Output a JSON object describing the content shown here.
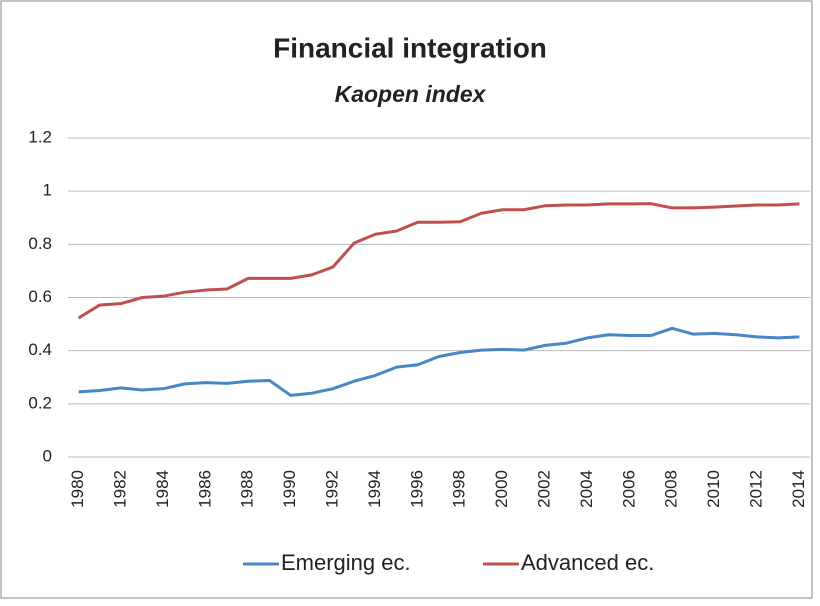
{
  "chart_data": {
    "type": "line",
    "title": "Financial integration",
    "subtitle": "Kaopen index",
    "categories": [
      1980,
      null,
      1982,
      null,
      1984,
      null,
      1986,
      null,
      1988,
      null,
      1990,
      null,
      1992,
      null,
      1994,
      null,
      1996,
      null,
      1998,
      null,
      2000,
      null,
      2002,
      null,
      2004,
      null,
      2006,
      null,
      2008,
      null,
      2010,
      null,
      2012,
      null,
      2014
    ],
    "series": [
      {
        "name": "Emerging ec.",
        "color": "#4a86c5",
        "values": [
          0.245,
          0.25,
          0.26,
          0.252,
          0.257,
          0.275,
          0.28,
          0.277,
          0.285,
          0.288,
          0.232,
          0.24,
          0.257,
          0.285,
          0.307,
          0.338,
          0.347,
          0.378,
          0.393,
          0.402,
          0.405,
          0.402,
          0.42,
          0.428,
          0.448,
          0.46,
          0.457,
          0.457,
          0.484,
          0.462,
          0.465,
          0.46,
          0.452,
          0.448,
          0.452
        ]
      },
      {
        "name": "Advanced ec.",
        "color": "#c0504d",
        "values": [
          0.523,
          0.572,
          0.577,
          0.6,
          0.605,
          0.62,
          0.628,
          0.632,
          0.672,
          0.672,
          0.672,
          0.685,
          0.715,
          0.805,
          0.838,
          0.85,
          0.883,
          0.883,
          0.885,
          0.917,
          0.93,
          0.93,
          0.945,
          0.948,
          0.948,
          0.952,
          0.952,
          0.953,
          0.937,
          0.937,
          0.94,
          0.944,
          0.948,
          0.948,
          0.952
        ]
      }
    ],
    "ylim": [
      0,
      1.2
    ],
    "yticks": [
      0,
      0.2,
      0.4,
      0.6,
      0.8,
      1,
      1.2
    ],
    "grid": true,
    "legend": "bottom"
  }
}
